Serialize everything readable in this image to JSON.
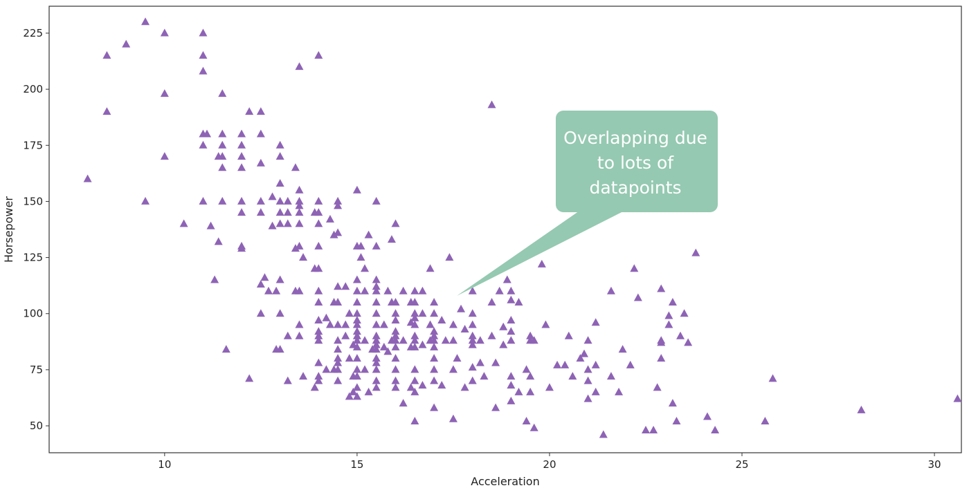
{
  "chart_data": {
    "type": "scatter",
    "xlabel": "Acceleration",
    "ylabel": "Horsepower",
    "xlim": [
      7,
      30.7
    ],
    "ylim": [
      38,
      237
    ],
    "xticks": [
      10,
      15,
      20,
      25,
      30
    ],
    "yticks": [
      50,
      75,
      100,
      125,
      150,
      175,
      200,
      225
    ],
    "marker": "triangle",
    "marker_color": "#8e63b5",
    "grid": false,
    "annotation": {
      "lines": [
        "Overlapping due",
        "to lots of",
        "datapoints"
      ],
      "box_color": "#95c9b1",
      "text_color": "#ffffff"
    },
    "points": [
      [
        8.0,
        160
      ],
      [
        8.5,
        215
      ],
      [
        8.5,
        190
      ],
      [
        9.0,
        220
      ],
      [
        9.5,
        230
      ],
      [
        9.5,
        150
      ],
      [
        10.0,
        225
      ],
      [
        10.0,
        198
      ],
      [
        10.0,
        170
      ],
      [
        10.5,
        140
      ],
      [
        11.0,
        225
      ],
      [
        11.0,
        215
      ],
      [
        11.0,
        208
      ],
      [
        11.0,
        180
      ],
      [
        11.1,
        180
      ],
      [
        11.0,
        175
      ],
      [
        11.0,
        150
      ],
      [
        11.2,
        139
      ],
      [
        11.3,
        115
      ],
      [
        11.4,
        132
      ],
      [
        11.5,
        198
      ],
      [
        11.5,
        180
      ],
      [
        11.5,
        175
      ],
      [
        11.5,
        170
      ],
      [
        11.5,
        165
      ],
      [
        11.5,
        150
      ],
      [
        11.4,
        170
      ],
      [
        11.6,
        84
      ],
      [
        12.0,
        180
      ],
      [
        12.0,
        175
      ],
      [
        12.0,
        170
      ],
      [
        12.0,
        165
      ],
      [
        12.0,
        150
      ],
      [
        12.0,
        145
      ],
      [
        12.0,
        130
      ],
      [
        12.0,
        129
      ],
      [
        12.2,
        190
      ],
      [
        12.2,
        71
      ],
      [
        12.5,
        190
      ],
      [
        12.5,
        180
      ],
      [
        12.5,
        167
      ],
      [
        12.5,
        150
      ],
      [
        12.5,
        145
      ],
      [
        12.5,
        113
      ],
      [
        12.5,
        100
      ],
      [
        12.6,
        116
      ],
      [
        12.7,
        110
      ],
      [
        12.8,
        152
      ],
      [
        12.8,
        139
      ],
      [
        12.9,
        110
      ],
      [
        13.0,
        175
      ],
      [
        13.0,
        170
      ],
      [
        13.0,
        158
      ],
      [
        13.0,
        150
      ],
      [
        13.0,
        145
      ],
      [
        13.0,
        140
      ],
      [
        13.0,
        115
      ],
      [
        13.0,
        84
      ],
      [
        12.9,
        84
      ],
      [
        13.0,
        100
      ],
      [
        13.2,
        150
      ],
      [
        13.2,
        140
      ],
      [
        13.2,
        145
      ],
      [
        13.2,
        90
      ],
      [
        13.2,
        70
      ],
      [
        13.4,
        165
      ],
      [
        13.4,
        129
      ],
      [
        13.4,
        110
      ],
      [
        13.5,
        210
      ],
      [
        13.5,
        155
      ],
      [
        13.5,
        150
      ],
      [
        13.5,
        148
      ],
      [
        13.5,
        145
      ],
      [
        13.5,
        140
      ],
      [
        13.5,
        130
      ],
      [
        13.5,
        110
      ],
      [
        13.5,
        95
      ],
      [
        13.5,
        90
      ],
      [
        13.6,
        125
      ],
      [
        13.6,
        72
      ],
      [
        13.9,
        145
      ],
      [
        13.9,
        120
      ],
      [
        13.9,
        67
      ],
      [
        14.0,
        215
      ],
      [
        14.0,
        150
      ],
      [
        14.0,
        145
      ],
      [
        14.0,
        140
      ],
      [
        14.0,
        130
      ],
      [
        14.0,
        120
      ],
      [
        14.0,
        110
      ],
      [
        14.0,
        105
      ],
      [
        14.0,
        97
      ],
      [
        14.0,
        92
      ],
      [
        14.0,
        90
      ],
      [
        14.0,
        88
      ],
      [
        14.0,
        78
      ],
      [
        14.0,
        72
      ],
      [
        14.0,
        70
      ],
      [
        14.2,
        98
      ],
      [
        14.2,
        75
      ],
      [
        14.3,
        142
      ],
      [
        14.3,
        95
      ],
      [
        14.4,
        135
      ],
      [
        14.4,
        105
      ],
      [
        14.4,
        75
      ],
      [
        14.5,
        150
      ],
      [
        14.5,
        148
      ],
      [
        14.5,
        136
      ],
      [
        14.5,
        112
      ],
      [
        14.5,
        105
      ],
      [
        14.5,
        95
      ],
      [
        14.5,
        88
      ],
      [
        14.5,
        84
      ],
      [
        14.5,
        80
      ],
      [
        14.5,
        78
      ],
      [
        14.5,
        75
      ],
      [
        14.5,
        70
      ],
      [
        14.7,
        112
      ],
      [
        14.7,
        95
      ],
      [
        14.7,
        90
      ],
      [
        14.8,
        100
      ],
      [
        14.8,
        80
      ],
      [
        14.8,
        63
      ],
      [
        14.9,
        86
      ],
      [
        14.9,
        72
      ],
      [
        14.9,
        65
      ],
      [
        15.0,
        155
      ],
      [
        15.0,
        130
      ],
      [
        15.0,
        115
      ],
      [
        15.0,
        110
      ],
      [
        15.0,
        105
      ],
      [
        15.0,
        100
      ],
      [
        15.0,
        97
      ],
      [
        15.0,
        95
      ],
      [
        15.0,
        92
      ],
      [
        15.0,
        90
      ],
      [
        15.0,
        88
      ],
      [
        15.0,
        85
      ],
      [
        15.0,
        80
      ],
      [
        15.0,
        75
      ],
      [
        15.0,
        72
      ],
      [
        15.0,
        67
      ],
      [
        15.0,
        63
      ],
      [
        15.1,
        130
      ],
      [
        15.1,
        125
      ],
      [
        15.2,
        120
      ],
      [
        15.2,
        88
      ],
      [
        15.2,
        75
      ],
      [
        15.2,
        110
      ],
      [
        15.3,
        135
      ],
      [
        15.3,
        65
      ],
      [
        15.4,
        84
      ],
      [
        15.5,
        150
      ],
      [
        15.5,
        130
      ],
      [
        15.5,
        115
      ],
      [
        15.5,
        112
      ],
      [
        15.5,
        110
      ],
      [
        15.5,
        105
      ],
      [
        15.5,
        100
      ],
      [
        15.5,
        95
      ],
      [
        15.5,
        90
      ],
      [
        15.5,
        88
      ],
      [
        15.5,
        86
      ],
      [
        15.5,
        84
      ],
      [
        15.5,
        80
      ],
      [
        15.5,
        78
      ],
      [
        15.5,
        75
      ],
      [
        15.5,
        70
      ],
      [
        15.5,
        67
      ],
      [
        15.7,
        95
      ],
      [
        15.7,
        85
      ],
      [
        15.8,
        110
      ],
      [
        15.8,
        83
      ],
      [
        15.9,
        133
      ],
      [
        15.9,
        105
      ],
      [
        15.9,
        88
      ],
      [
        16.0,
        140
      ],
      [
        16.0,
        105
      ],
      [
        16.0,
        100
      ],
      [
        16.0,
        97
      ],
      [
        16.0,
        92
      ],
      [
        16.0,
        90
      ],
      [
        16.0,
        88
      ],
      [
        16.0,
        85
      ],
      [
        16.0,
        80
      ],
      [
        16.0,
        75
      ],
      [
        16.0,
        70
      ],
      [
        16.0,
        67
      ],
      [
        16.2,
        110
      ],
      [
        16.2,
        88
      ],
      [
        16.2,
        60
      ],
      [
        16.4,
        105
      ],
      [
        16.4,
        96
      ],
      [
        16.4,
        85
      ],
      [
        16.4,
        67
      ],
      [
        16.5,
        110
      ],
      [
        16.5,
        105
      ],
      [
        16.5,
        100
      ],
      [
        16.5,
        98
      ],
      [
        16.5,
        95
      ],
      [
        16.5,
        90
      ],
      [
        16.5,
        88
      ],
      [
        16.5,
        85
      ],
      [
        16.5,
        75
      ],
      [
        16.5,
        70
      ],
      [
        16.5,
        65
      ],
      [
        16.5,
        52
      ],
      [
        16.7,
        110
      ],
      [
        16.7,
        100
      ],
      [
        16.7,
        86
      ],
      [
        16.7,
        68
      ],
      [
        16.9,
        120
      ],
      [
        16.9,
        95
      ],
      [
        16.9,
        88
      ],
      [
        17.0,
        105
      ],
      [
        17.0,
        100
      ],
      [
        17.0,
        92
      ],
      [
        17.0,
        90
      ],
      [
        17.0,
        88
      ],
      [
        17.0,
        85
      ],
      [
        17.0,
        80
      ],
      [
        17.0,
        75
      ],
      [
        17.0,
        70
      ],
      [
        17.0,
        58
      ],
      [
        17.2,
        97
      ],
      [
        17.2,
        68
      ],
      [
        17.3,
        88
      ],
      [
        17.4,
        125
      ],
      [
        17.5,
        95
      ],
      [
        17.5,
        88
      ],
      [
        17.5,
        75
      ],
      [
        17.5,
        53
      ],
      [
        17.6,
        80
      ],
      [
        17.7,
        102
      ],
      [
        17.8,
        93
      ],
      [
        17.8,
        67
      ],
      [
        18.0,
        110
      ],
      [
        18.0,
        100
      ],
      [
        18.0,
        95
      ],
      [
        18.0,
        90
      ],
      [
        18.0,
        88
      ],
      [
        18.0,
        86
      ],
      [
        18.0,
        76
      ],
      [
        18.0,
        70
      ],
      [
        18.2,
        88
      ],
      [
        18.2,
        78
      ],
      [
        18.3,
        72
      ],
      [
        18.5,
        193
      ],
      [
        18.5,
        105
      ],
      [
        18.5,
        90
      ],
      [
        18.6,
        78
      ],
      [
        18.6,
        58
      ],
      [
        18.7,
        110
      ],
      [
        18.8,
        94
      ],
      [
        18.8,
        86
      ],
      [
        18.9,
        115
      ],
      [
        19.0,
        110
      ],
      [
        19.0,
        106
      ],
      [
        19.0,
        97
      ],
      [
        19.0,
        92
      ],
      [
        19.0,
        88
      ],
      [
        19.0,
        72
      ],
      [
        19.0,
        68
      ],
      [
        19.0,
        61
      ],
      [
        19.2,
        105
      ],
      [
        19.2,
        65
      ],
      [
        19.4,
        75
      ],
      [
        19.4,
        52
      ],
      [
        19.5,
        90
      ],
      [
        19.5,
        88
      ],
      [
        19.5,
        72
      ],
      [
        19.5,
        65
      ],
      [
        19.6,
        49
      ],
      [
        19.6,
        88
      ],
      [
        19.8,
        122
      ],
      [
        19.9,
        95
      ],
      [
        20.0,
        67
      ],
      [
        20.2,
        77
      ],
      [
        20.4,
        77
      ],
      [
        20.5,
        90
      ],
      [
        20.6,
        72
      ],
      [
        20.8,
        80
      ],
      [
        20.9,
        82
      ],
      [
        21.0,
        88
      ],
      [
        21.0,
        75
      ],
      [
        21.0,
        70
      ],
      [
        21.0,
        62
      ],
      [
        21.2,
        96
      ],
      [
        21.2,
        77
      ],
      [
        21.2,
        65
      ],
      [
        21.4,
        46
      ],
      [
        21.6,
        110
      ],
      [
        21.6,
        72
      ],
      [
        21.8,
        65
      ],
      [
        21.9,
        84
      ],
      [
        22.1,
        77
      ],
      [
        22.2,
        120
      ],
      [
        22.3,
        107
      ],
      [
        22.5,
        48
      ],
      [
        22.7,
        48
      ],
      [
        22.8,
        67
      ],
      [
        22.9,
        111
      ],
      [
        22.9,
        87
      ],
      [
        22.9,
        88
      ],
      [
        22.9,
        80
      ],
      [
        23.1,
        99
      ],
      [
        23.1,
        95
      ],
      [
        23.2,
        105
      ],
      [
        23.2,
        60
      ],
      [
        23.3,
        52
      ],
      [
        23.4,
        90
      ],
      [
        23.5,
        100
      ],
      [
        23.6,
        87
      ],
      [
        23.8,
        127
      ],
      [
        24.1,
        54
      ],
      [
        24.3,
        48
      ],
      [
        25.6,
        52
      ],
      [
        25.8,
        71
      ],
      [
        28.1,
        57
      ],
      [
        30.6,
        62
      ]
    ]
  }
}
